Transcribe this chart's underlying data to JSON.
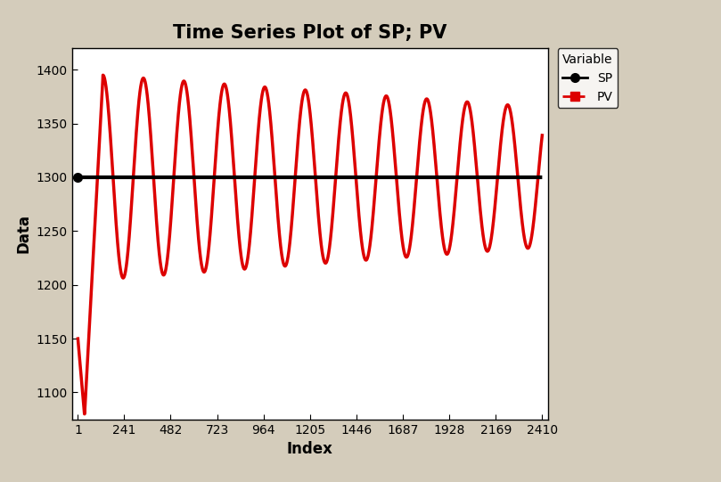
{
  "title": "Time Series Plot of SP; PV",
  "xlabel": "Index",
  "ylabel": "Data",
  "bg_color": "#d4ccbb",
  "plot_bg_color": "#ffffff",
  "sp_value": 1300,
  "x_ticks": [
    1,
    241,
    482,
    723,
    964,
    1205,
    1446,
    1687,
    1928,
    2169,
    2410
  ],
  "x_min": 1,
  "x_max": 2410,
  "y_min": 1075,
  "y_max": 1420,
  "y_ticks": [
    1100,
    1150,
    1200,
    1250,
    1300,
    1350,
    1400
  ],
  "sp_color": "#000000",
  "pv_color": "#dd0000",
  "title_fontsize": 15,
  "axis_label_fontsize": 12,
  "tick_fontsize": 10,
  "legend_title": "Variable",
  "legend_labels": [
    "SP",
    "PV"
  ],
  "n_points": 2410
}
